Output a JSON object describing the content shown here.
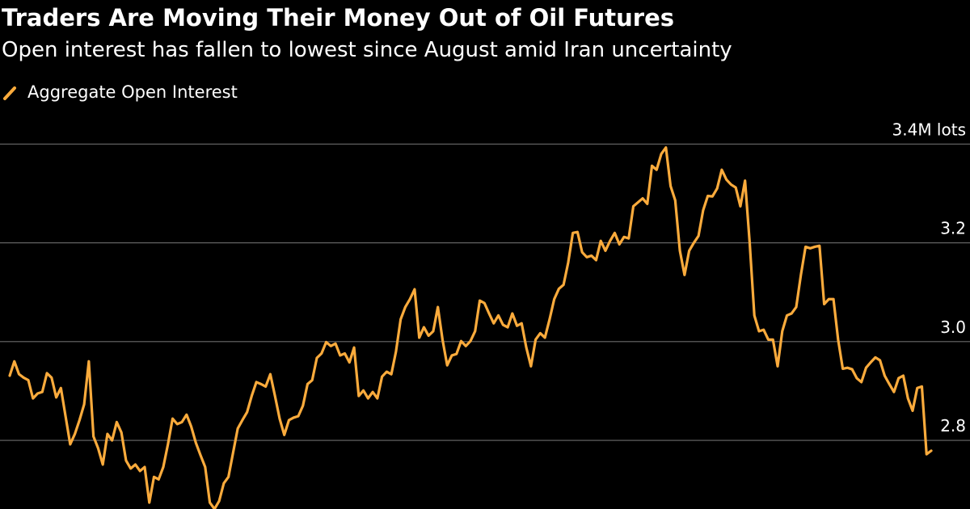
{
  "chart_data": {
    "type": "line",
    "title": "Traders Are Moving Their Money Out of Oil Futures",
    "subtitle": "Open interest has fallen to lowest since August amid Iran uncertainty",
    "ylim": [
      2.661,
      3.43
    ],
    "yticks": [
      {
        "value": 2.8,
        "label": "2.8"
      },
      {
        "value": 3,
        "label": "3.0"
      },
      3.2,
      {
        "value": 3.4,
        "label": "3.4M lots"
      }
    ],
    "grid": true,
    "series": [
      {
        "name": "Aggregate Open Interest",
        "color": "#fbab3c",
        "values": [
          2.931,
          2.96,
          2.934,
          2.927,
          2.922,
          2.885,
          2.895,
          2.898,
          2.936,
          2.927,
          2.887,
          2.906,
          2.849,
          2.792,
          2.813,
          2.841,
          2.873,
          2.96,
          2.808,
          2.784,
          2.751,
          2.813,
          2.8,
          2.837,
          2.816,
          2.759,
          2.743,
          2.751,
          2.738,
          2.746,
          2.674,
          2.726,
          2.721,
          2.746,
          2.792,
          2.844,
          2.833,
          2.837,
          2.852,
          2.828,
          2.795,
          2.77,
          2.746,
          2.674,
          2.661,
          2.677,
          2.713,
          2.726,
          2.775,
          2.824,
          2.841,
          2.857,
          2.89,
          2.918,
          2.914,
          2.909,
          2.934,
          2.89,
          2.844,
          2.811,
          2.841,
          2.846,
          2.849,
          2.87,
          2.914,
          2.922,
          2.967,
          2.976,
          2.999,
          2.991,
          2.996,
          2.972,
          2.976,
          2.958,
          2.988,
          2.89,
          2.901,
          2.885,
          2.898,
          2.885,
          2.929,
          2.939,
          2.934,
          2.98,
          3.045,
          3.07,
          3.086,
          3.106,
          3.008,
          3.029,
          3.012,
          3.021,
          3.07,
          3.004,
          2.952,
          2.972,
          2.975,
          3.001,
          2.991,
          3.001,
          3.021,
          3.083,
          3.078,
          3.057,
          3.037,
          3.053,
          3.034,
          3.029,
          3.057,
          3.032,
          3.037,
          2.988,
          2.95,
          3.004,
          3.017,
          3.008,
          3.045,
          3.086,
          3.107,
          3.115,
          3.16,
          3.22,
          3.222,
          3.181,
          3.171,
          3.174,
          3.165,
          3.204,
          3.184,
          3.204,
          3.22,
          3.197,
          3.212,
          3.209,
          3.274,
          3.282,
          3.29,
          3.279,
          3.356,
          3.348,
          3.38,
          3.393,
          3.315,
          3.286,
          3.184,
          3.135,
          3.184,
          3.2,
          3.214,
          3.266,
          3.295,
          3.294,
          3.31,
          3.348,
          3.328,
          3.318,
          3.312,
          3.274,
          3.326,
          3.2,
          3.053,
          3.021,
          3.024,
          3.004,
          3.004,
          2.95,
          3.021,
          3.053,
          3.057,
          3.07,
          3.135,
          3.192,
          3.189,
          3.192,
          3.194,
          3.076,
          3.086,
          3.086,
          3.004,
          2.945,
          2.947,
          2.944,
          2.926,
          2.918,
          2.947,
          2.958,
          2.968,
          2.962,
          2.931,
          2.914,
          2.898,
          2.926,
          2.931,
          2.885,
          2.86,
          2.906,
          2.909,
          2.772,
          2.779
        ]
      }
    ]
  }
}
